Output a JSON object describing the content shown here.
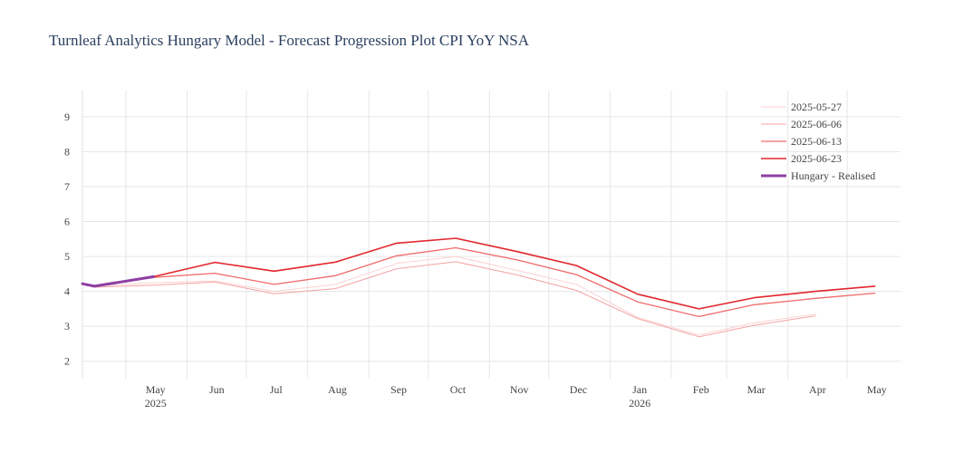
{
  "chart_data": {
    "type": "line",
    "title": "Turnleaf Analytics Hungary Model - Forecast Progression Plot CPI YoY NSA",
    "xlabel": "",
    "ylabel": "",
    "ylim": [
      1.5,
      9.75
    ],
    "xlim": [
      "2025-04-09",
      "2026-05-28"
    ],
    "grid": true,
    "legend_position": "top-right",
    "y_ticks": [
      2,
      3,
      4,
      5,
      6,
      7,
      8,
      9
    ],
    "x_ticks": [
      {
        "date": "2025-05-01",
        "label": "May",
        "sublabel": "2025"
      },
      {
        "date": "2025-06-01",
        "label": "Jun",
        "sublabel": ""
      },
      {
        "date": "2025-07-01",
        "label": "Jul",
        "sublabel": ""
      },
      {
        "date": "2025-08-01",
        "label": "Aug",
        "sublabel": ""
      },
      {
        "date": "2025-09-01",
        "label": "Sep",
        "sublabel": ""
      },
      {
        "date": "2025-10-01",
        "label": "Oct",
        "sublabel": ""
      },
      {
        "date": "2025-11-01",
        "label": "Nov",
        "sublabel": ""
      },
      {
        "date": "2025-12-01",
        "label": "Dec",
        "sublabel": ""
      },
      {
        "date": "2026-01-01",
        "label": "Jan",
        "sublabel": "2026"
      },
      {
        "date": "2026-02-01",
        "label": "Feb",
        "sublabel": ""
      },
      {
        "date": "2026-03-01",
        "label": "Mar",
        "sublabel": ""
      },
      {
        "date": "2026-04-01",
        "label": "Apr",
        "sublabel": ""
      },
      {
        "date": "2026-05-01",
        "label": "May",
        "sublabel": ""
      }
    ],
    "series": [
      {
        "name": "2025-05-27",
        "color": "#fbd3d3",
        "width": 1,
        "points": [
          {
            "x": "2025-04-15",
            "y": 4.15
          },
          {
            "x": "2025-05-15",
            "y": 4.25
          },
          {
            "x": "2025-06-15",
            "y": 4.3
          },
          {
            "x": "2025-07-15",
            "y": 4.0
          },
          {
            "x": "2025-08-15",
            "y": 4.2
          },
          {
            "x": "2025-09-15",
            "y": 4.8
          },
          {
            "x": "2025-10-15",
            "y": 5.0
          },
          {
            "x": "2025-11-15",
            "y": 4.6
          },
          {
            "x": "2025-12-15",
            "y": 4.2
          },
          {
            "x": "2026-01-15",
            "y": 3.25
          },
          {
            "x": "2026-02-15",
            "y": 2.75
          },
          {
            "x": "2026-03-15",
            "y": 3.1
          },
          {
            "x": "2026-04-15",
            "y": 3.35
          }
        ]
      },
      {
        "name": "2025-06-06",
        "color": "#f4a3a3",
        "width": 1,
        "points": [
          {
            "x": "2025-04-15",
            "y": 4.12
          },
          {
            "x": "2025-05-15",
            "y": 4.18
          },
          {
            "x": "2025-06-15",
            "y": 4.27
          },
          {
            "x": "2025-07-15",
            "y": 3.93
          },
          {
            "x": "2025-08-15",
            "y": 4.08
          },
          {
            "x": "2025-09-15",
            "y": 4.65
          },
          {
            "x": "2025-10-15",
            "y": 4.85
          },
          {
            "x": "2025-11-15",
            "y": 4.47
          },
          {
            "x": "2025-12-15",
            "y": 4.03
          },
          {
            "x": "2026-01-15",
            "y": 3.22
          },
          {
            "x": "2026-02-15",
            "y": 2.7
          },
          {
            "x": "2026-03-15",
            "y": 3.03
          },
          {
            "x": "2026-04-15",
            "y": 3.3
          }
        ]
      },
      {
        "name": "2025-06-13",
        "color": "#ef6a6a",
        "width": 1.3,
        "points": [
          {
            "x": "2025-04-15",
            "y": 4.15
          },
          {
            "x": "2025-05-15",
            "y": 4.4
          },
          {
            "x": "2025-06-15",
            "y": 4.52
          },
          {
            "x": "2025-07-15",
            "y": 4.2
          },
          {
            "x": "2025-08-15",
            "y": 4.45
          },
          {
            "x": "2025-09-15",
            "y": 5.02
          },
          {
            "x": "2025-10-15",
            "y": 5.25
          },
          {
            "x": "2025-11-15",
            "y": 4.9
          },
          {
            "x": "2025-12-15",
            "y": 4.48
          },
          {
            "x": "2026-01-15",
            "y": 3.7
          },
          {
            "x": "2026-02-15",
            "y": 3.28
          },
          {
            "x": "2026-03-15",
            "y": 3.62
          },
          {
            "x": "2026-04-15",
            "y": 3.8
          },
          {
            "x": "2026-05-15",
            "y": 3.95
          }
        ]
      },
      {
        "name": "2025-06-23",
        "color": "#e2262d",
        "width": 1.6,
        "points": [
          {
            "x": "2025-04-15",
            "y": 4.15
          },
          {
            "x": "2025-05-15",
            "y": 4.42
          },
          {
            "x": "2025-06-15",
            "y": 4.83
          },
          {
            "x": "2025-07-15",
            "y": 4.58
          },
          {
            "x": "2025-08-15",
            "y": 4.84
          },
          {
            "x": "2025-09-15",
            "y": 5.38
          },
          {
            "x": "2025-10-15",
            "y": 5.52
          },
          {
            "x": "2025-11-15",
            "y": 5.14
          },
          {
            "x": "2025-12-15",
            "y": 4.74
          },
          {
            "x": "2026-01-15",
            "y": 3.92
          },
          {
            "x": "2026-02-15",
            "y": 3.5
          },
          {
            "x": "2026-03-15",
            "y": 3.82
          },
          {
            "x": "2026-04-15",
            "y": 4.0
          },
          {
            "x": "2026-05-15",
            "y": 4.15
          }
        ]
      },
      {
        "name": "Hungary - Realised",
        "color": "#8e3ea3",
        "width": 3,
        "points": [
          {
            "x": "2025-04-09",
            "y": 4.22
          },
          {
            "x": "2025-04-15",
            "y": 4.15
          },
          {
            "x": "2025-05-15",
            "y": 4.42
          }
        ]
      }
    ]
  }
}
